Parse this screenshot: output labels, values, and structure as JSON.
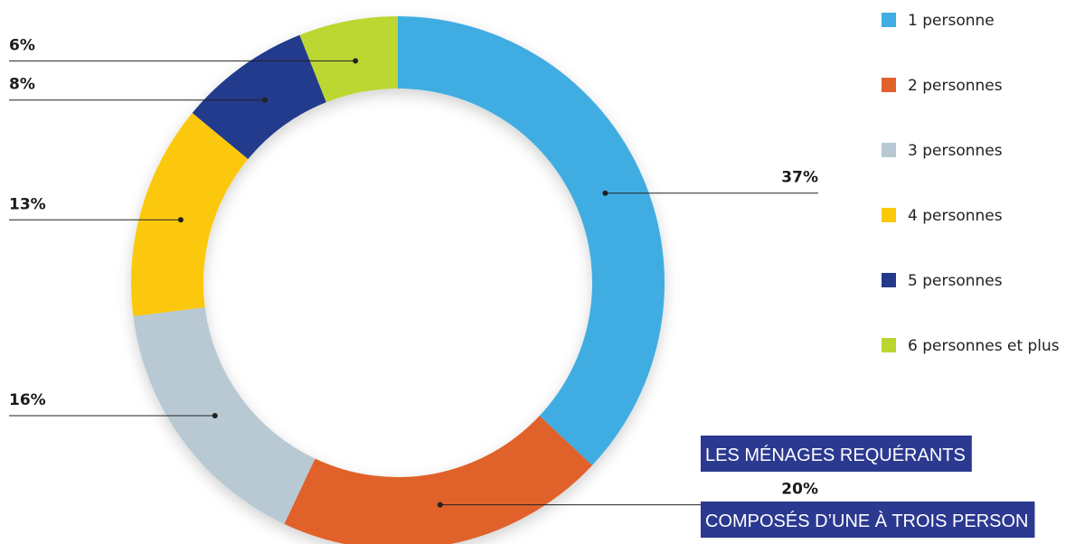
{
  "chart_data": {
    "type": "donut",
    "categories": [
      "1 personne",
      "2 personnes",
      "3 personnes",
      "4 personnes",
      "5 personnes",
      "6 personnes et plus"
    ],
    "values": [
      37,
      20,
      16,
      13,
      8,
      6
    ],
    "value_labels": [
      "37%",
      "20%",
      "16%",
      "13%",
      "8%",
      "6%"
    ],
    "colors": [
      "#41ade2",
      "#e0622a",
      "#b9c9d3",
      "#fcc80a",
      "#233a8c",
      "#bcd631"
    ],
    "legend": "right",
    "annotations": [
      "LES MÉNAGES REQUÉRANTS",
      "COMPOSÉS D’UNE À TROIS PERSON"
    ]
  }
}
